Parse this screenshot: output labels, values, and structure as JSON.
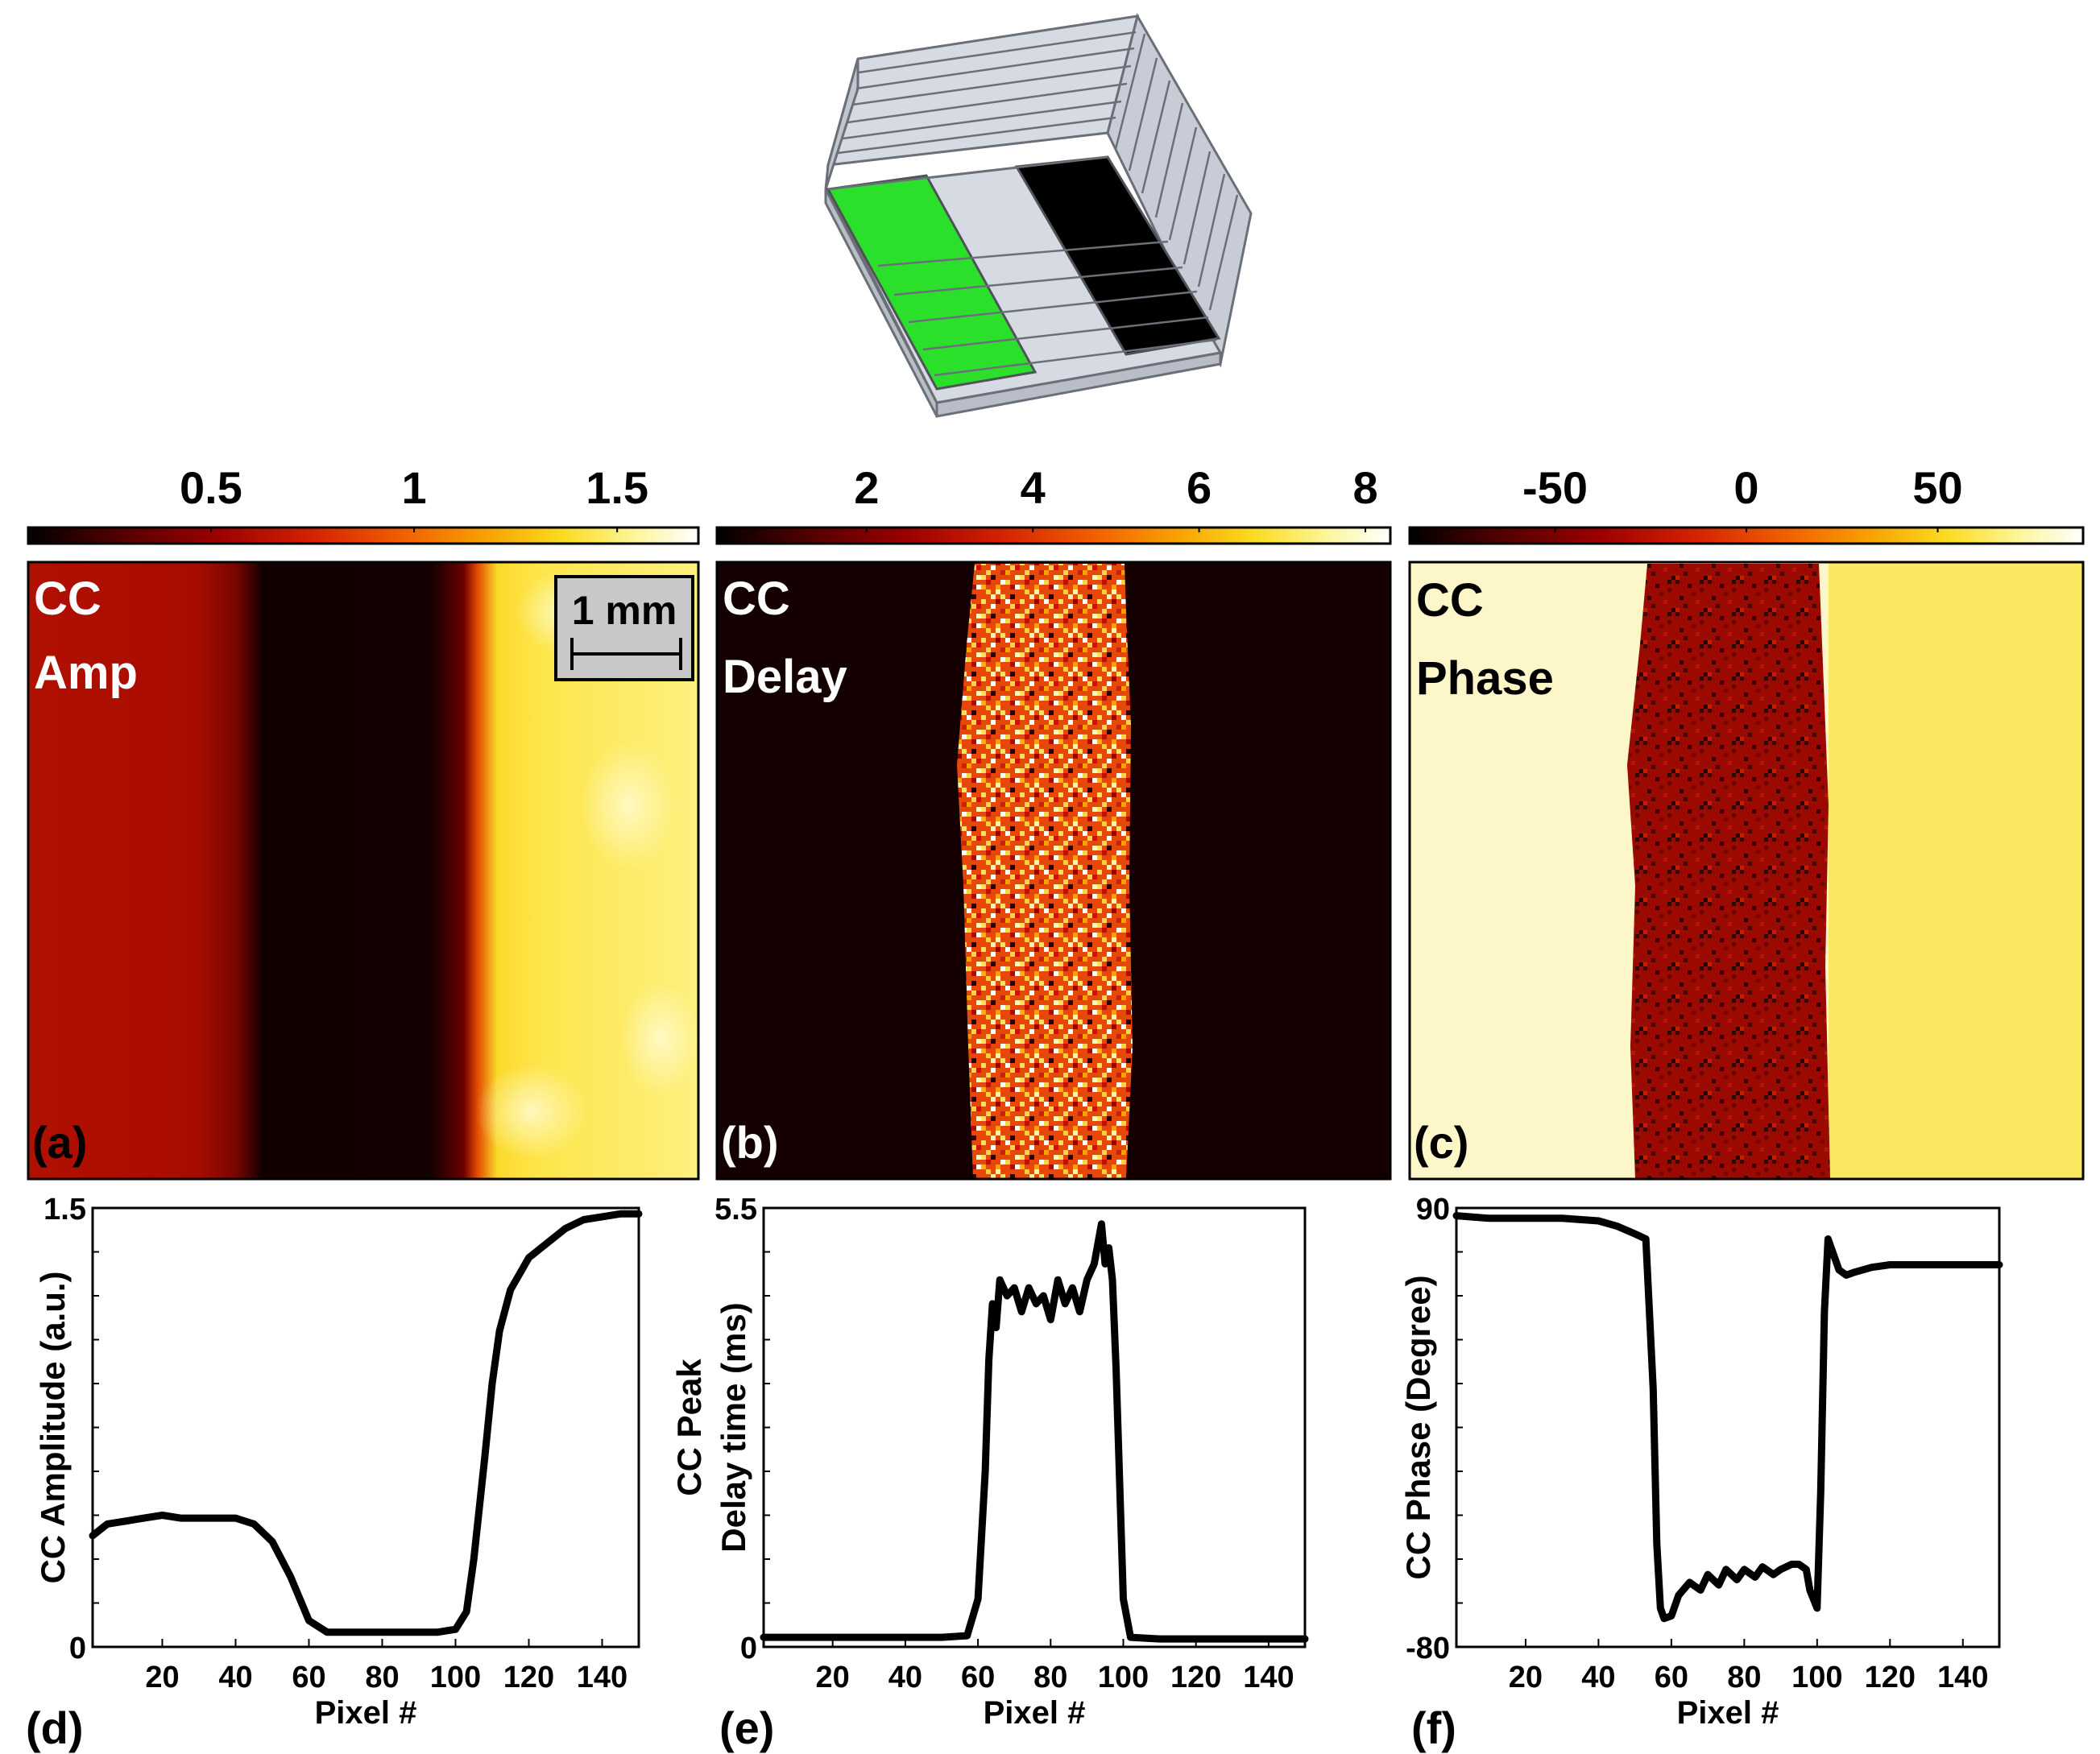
{
  "colors": {
    "hot_scale": [
      "#000000",
      "#4a0000",
      "#8e0000",
      "#c81a00",
      "#ef5a00",
      "#f7a000",
      "#fadc20",
      "#fdf7a0",
      "#ffffff"
    ],
    "green_stripe": "#2be02b",
    "black_stripe": "#000000",
    "box_face": "#d2d6df"
  },
  "schematic": {
    "name": "sample-schematic-3d-box"
  },
  "colorbars": [
    {
      "ticks": [
        "0.5",
        "1",
        "1.5"
      ],
      "tick_values": [
        0.5,
        1,
        1.5
      ],
      "range": [
        0.05,
        1.7
      ]
    },
    {
      "ticks": [
        "2",
        "4",
        "6",
        "8"
      ],
      "tick_values": [
        2,
        4,
        6,
        8
      ],
      "range": [
        0.2,
        8.3
      ]
    },
    {
      "ticks": [
        "-50",
        "0",
        "50"
      ],
      "tick_values": [
        -50,
        0,
        50
      ],
      "range": [
        -88,
        88
      ]
    }
  ],
  "images": [
    {
      "title_line1": "CC",
      "title_line2": "Amp",
      "panel_label": "(a)",
      "scalebar_label": "1 mm"
    },
    {
      "title_line1": "CC",
      "title_line2": "Delay",
      "panel_label": "(b)"
    },
    {
      "title_line1": "CC",
      "title_line2": "Phase",
      "panel_label": "(c)"
    }
  ],
  "chart_data": [
    {
      "type": "line",
      "panel_label": "(d)",
      "xlabel": "Pixel #",
      "ylabel": "CC Amplitude (a.u.)",
      "xlim": [
        1,
        150
      ],
      "ylim": [
        0,
        1.5
      ],
      "xticks": [
        "20",
        "40",
        "60",
        "80",
        "100",
        "120",
        "140"
      ],
      "xtick_values": [
        20,
        40,
        60,
        80,
        100,
        120,
        140
      ],
      "yticks": [
        "0",
        "1.5"
      ],
      "ytick_values": [
        0,
        1.5
      ],
      "x": [
        1,
        5,
        10,
        15,
        20,
        25,
        30,
        35,
        40,
        45,
        50,
        55,
        60,
        65,
        70,
        75,
        80,
        85,
        90,
        95,
        100,
        103,
        105,
        108,
        110,
        112,
        115,
        120,
        125,
        130,
        135,
        140,
        145,
        150
      ],
      "values": [
        0.38,
        0.42,
        0.43,
        0.44,
        0.45,
        0.44,
        0.44,
        0.44,
        0.44,
        0.42,
        0.36,
        0.24,
        0.09,
        0.05,
        0.05,
        0.05,
        0.05,
        0.05,
        0.05,
        0.05,
        0.06,
        0.12,
        0.3,
        0.65,
        0.9,
        1.08,
        1.22,
        1.33,
        1.38,
        1.43,
        1.46,
        1.47,
        1.48,
        1.48
      ]
    },
    {
      "type": "line",
      "panel_label": "(e)",
      "xlabel": "Pixel #",
      "ylabel_line1": "CC Peak",
      "ylabel_line2": "Delay time (ms)",
      "xlim": [
        1,
        150
      ],
      "ylim": [
        0,
        5.5
      ],
      "xticks": [
        "20",
        "40",
        "60",
        "80",
        "100",
        "120",
        "140"
      ],
      "xtick_values": [
        20,
        40,
        60,
        80,
        100,
        120,
        140
      ],
      "yticks": [
        "0",
        "5.5"
      ],
      "ytick_values": [
        0,
        5.5
      ],
      "x": [
        1,
        10,
        20,
        30,
        40,
        50,
        57,
        60,
        62,
        63,
        64,
        65,
        66,
        68,
        70,
        72,
        74,
        76,
        78,
        80,
        82,
        84,
        86,
        88,
        90,
        92,
        94,
        95,
        96,
        97,
        98,
        100,
        102,
        110,
        120,
        130,
        140,
        150
      ],
      "values": [
        0.12,
        0.12,
        0.12,
        0.12,
        0.12,
        0.12,
        0.14,
        0.6,
        2.2,
        3.6,
        4.3,
        4.0,
        4.6,
        4.4,
        4.5,
        4.2,
        4.5,
        4.3,
        4.4,
        4.1,
        4.6,
        4.3,
        4.5,
        4.2,
        4.6,
        4.8,
        5.3,
        4.8,
        5.0,
        4.6,
        3.5,
        0.6,
        0.12,
        0.1,
        0.1,
        0.1,
        0.1,
        0.1
      ]
    },
    {
      "type": "line",
      "panel_label": "(f)",
      "xlabel": "Pixel #",
      "ylabel": "CC Phase (Degree)",
      "xlim": [
        1,
        150
      ],
      "ylim": [
        -80,
        90
      ],
      "xticks": [
        "20",
        "40",
        "60",
        "80",
        "100",
        "120",
        "140"
      ],
      "xtick_values": [
        20,
        40,
        60,
        80,
        100,
        120,
        140
      ],
      "yticks": [
        "90",
        "-80"
      ],
      "ytick_values": [
        90,
        -80
      ],
      "x": [
        1,
        10,
        20,
        30,
        40,
        45,
        50,
        53,
        55,
        56,
        57,
        58,
        60,
        62,
        65,
        68,
        70,
        73,
        75,
        78,
        80,
        83,
        85,
        88,
        90,
        93,
        95,
        97,
        98,
        100,
        101,
        102,
        103,
        104,
        106,
        108,
        110,
        115,
        120,
        130,
        140,
        150
      ],
      "values": [
        87,
        86,
        86,
        86,
        85,
        83,
        80,
        78,
        20,
        -40,
        -65,
        -69,
        -68,
        -60,
        -55,
        -58,
        -52,
        -56,
        -50,
        -54,
        -50,
        -53,
        -49,
        -52,
        -50,
        -48,
        -48,
        -50,
        -58,
        -65,
        -20,
        50,
        78,
        74,
        66,
        64,
        65,
        67,
        68,
        68,
        68,
        68
      ]
    }
  ]
}
